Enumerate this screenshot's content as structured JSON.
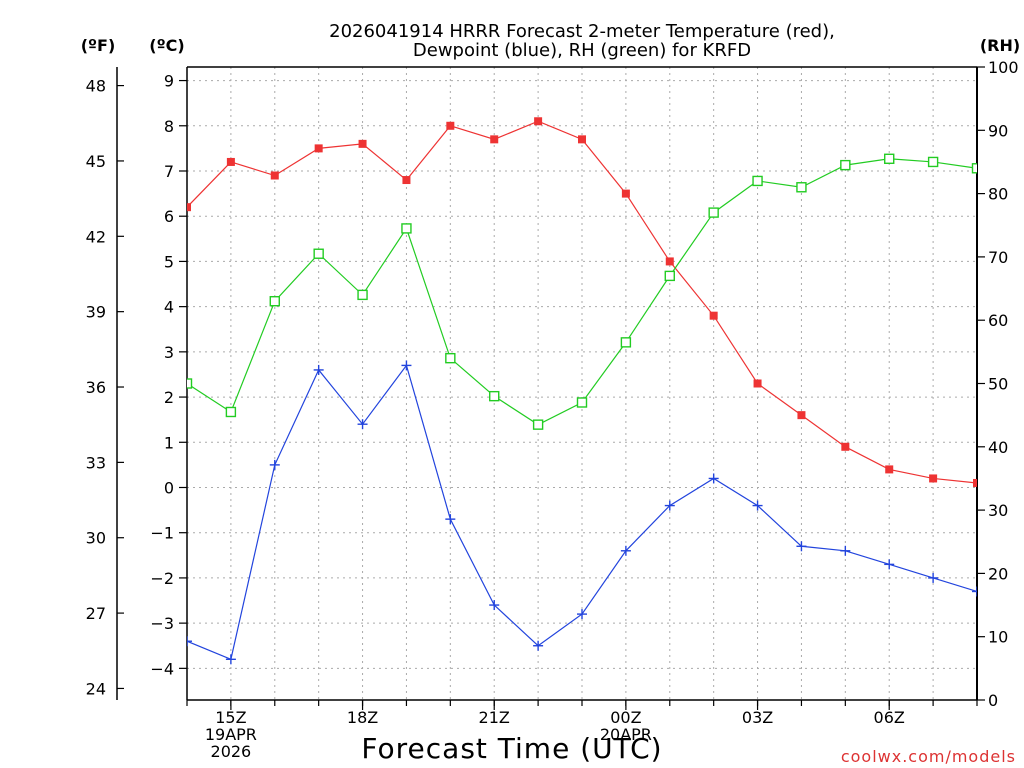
{
  "chart_data": {
    "type": "line",
    "title_line1": "2026041914 HRRR Forecast 2-meter Temperature (red),",
    "title_line2": "Dewpoint (blue), RH (green) for KRFD",
    "xlabel": "Forecast Time (UTC)",
    "credit": "coolwx.com/models",
    "unit_left_f": "(ºF)",
    "unit_left_c": "(ºC)",
    "unit_right": "(RH)",
    "x": [
      14,
      15,
      16,
      17,
      18,
      19,
      20,
      21,
      22,
      23,
      24,
      25,
      26,
      27,
      28,
      29,
      30,
      31,
      32
    ],
    "xlim": [
      14,
      32
    ],
    "x_ticks": [
      {
        "x": 15,
        "lines": [
          "15Z",
          "19APR",
          "2026"
        ]
      },
      {
        "x": 18,
        "lines": [
          "18Z"
        ]
      },
      {
        "x": 21,
        "lines": [
          "21Z"
        ]
      },
      {
        "x": 24,
        "lines": [
          "00Z",
          "20APR"
        ]
      },
      {
        "x": 27,
        "lines": [
          "03Z"
        ]
      },
      {
        "x": 30,
        "lines": [
          "06Z"
        ]
      }
    ],
    "celsius_axis": {
      "range": [
        -4.7,
        9.3
      ],
      "ticks": [
        9,
        8,
        7,
        6,
        5,
        4,
        3,
        2,
        1,
        0,
        -1,
        -2,
        -3,
        -4
      ]
    },
    "fahrenheit_axis": {
      "ticks": [
        48,
        45,
        42,
        39,
        36,
        33,
        30,
        27,
        24
      ]
    },
    "rh_axis": {
      "range": [
        0,
        100
      ],
      "ticks": [
        100,
        90,
        80,
        70,
        60,
        50,
        40,
        30,
        20,
        10,
        0
      ]
    },
    "series": [
      {
        "name": "2-meter Temperature",
        "units": "C",
        "color": "#ee3333",
        "marker": "filled-square",
        "values": [
          6.2,
          7.2,
          6.9,
          7.5,
          7.6,
          6.8,
          8.0,
          7.7,
          8.1,
          7.7,
          6.5,
          5.0,
          3.8,
          2.3,
          1.6,
          0.9,
          0.4,
          0.2,
          0.1
        ]
      },
      {
        "name": "Dewpoint",
        "units": "C",
        "color": "#2244dd",
        "marker": "plus",
        "values": [
          -3.4,
          -3.8,
          0.5,
          2.6,
          1.4,
          2.7,
          -0.7,
          -2.6,
          -3.5,
          -2.8,
          -1.4,
          -0.4,
          0.2,
          -0.4,
          -1.3,
          -1.4,
          -1.7,
          -2.0,
          -2.3
        ]
      },
      {
        "name": "RH",
        "units": "%",
        "color": "#22cc22",
        "marker": "open-square",
        "values": [
          50,
          45.5,
          63,
          70.5,
          64,
          74.5,
          54,
          48,
          43.5,
          47,
          56.5,
          67,
          77,
          82,
          81,
          84.5,
          85.5,
          85,
          84
        ]
      }
    ]
  }
}
